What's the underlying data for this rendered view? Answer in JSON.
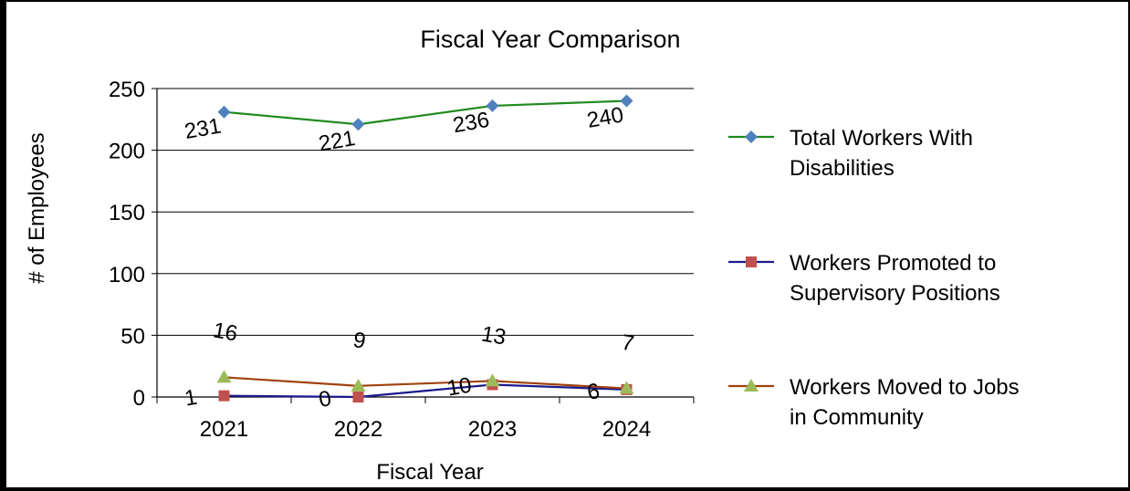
{
  "chart_data": {
    "type": "line",
    "title": "Fiscal Year Comparison",
    "xlabel": "Fiscal Year",
    "ylabel": "# of Employees",
    "categories": [
      "2021",
      "2022",
      "2023",
      "2024"
    ],
    "ylim": [
      0,
      250
    ],
    "yticks": [
      0,
      50,
      100,
      150,
      200,
      250
    ],
    "grid": true,
    "legend_position": "right",
    "series": [
      {
        "name": "Total Workers With Disabilities",
        "name_lines": [
          "Total Workers With",
          "Disabilities"
        ],
        "values": [
          231,
          221,
          236,
          240
        ],
        "labels": [
          "231",
          "221",
          "236",
          "240"
        ],
        "line_color": "#1f8a1f",
        "marker_color": "#4f81bd",
        "marker": "diamond"
      },
      {
        "name": "Workers Promoted to Supervisory Positions",
        "name_lines": [
          "Workers Promoted to",
          "Supervisory Positions"
        ],
        "values": [
          1,
          0,
          10,
          6
        ],
        "labels": [
          "1",
          "0",
          "10",
          "6"
        ],
        "line_color": "#1a1a8c",
        "marker_color": "#c0504d",
        "marker": "square"
      },
      {
        "name": "Workers Moved to Jobs in Community",
        "name_lines": [
          "Workers Moved to Jobs",
          "in Community"
        ],
        "values": [
          16,
          9,
          13,
          7
        ],
        "labels": [
          "16",
          "9",
          "13",
          "7"
        ],
        "line_color": "#a0410d",
        "marker_color": "#9bbb59",
        "marker": "triangle"
      }
    ]
  }
}
